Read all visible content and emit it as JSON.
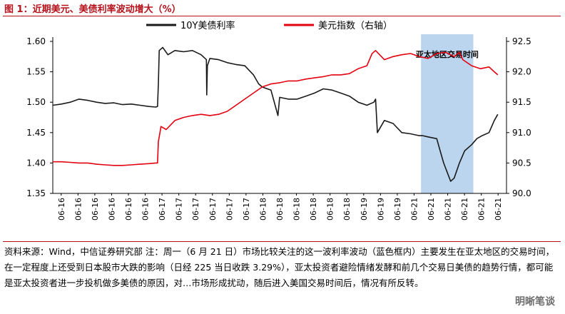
{
  "figure": {
    "title": "图 1：近期美元、美债利率波动增大（%）",
    "note": "资料来源：Wind，中信证券研究部  注：周一（6 月 21 日）市场比较关注的这一波利率波动（蓝色框内）主要发生在亚太地区的交易时间，在一定程度上还受到日本股市大跌的影响（日经 225 当日收跌 3.29%），亚太投资者避险情绪发酵和前几个交易日美债的趋势行情，都可能是亚太投资者进一步投机做多美债的原因，对…市场形成扰动，随后进入美国交易时间后，情况有所反转。",
    "watermark": "明晰笔谈"
  },
  "colors": {
    "yield": "#1a1a1a",
    "dollar": "#e3000f",
    "highlight": "#bcd5ee",
    "accent": "#b5121b"
  },
  "chart_data": {
    "type": "line",
    "title": "",
    "legend": [
      "10Y美债利率",
      "美元指数（右轴）"
    ],
    "legend_position": "top",
    "annotation": "亚太地区交易时间",
    "x_tick_labels": [
      "06-16",
      "06-16",
      "06-16",
      "06-16",
      "06-16",
      "06-16",
      "06-17",
      "06-17",
      "06-17",
      "06-17",
      "06-17",
      "06-17",
      "06-18",
      "06-18",
      "06-18",
      "06-18",
      "06-18",
      "06-18",
      "06-19",
      "06-19",
      "06-19",
      "06-21",
      "06-21",
      "06-21",
      "06-21",
      "06-21",
      "06-21"
    ],
    "x_range": [
      0,
      26
    ],
    "highlight_range": [
      21.1,
      24.1
    ],
    "y_left": {
      "lim": [
        1.35,
        1.6
      ],
      "ticks": [
        "1.35",
        "1.40",
        "1.45",
        "1.50",
        "1.55",
        "1.60"
      ]
    },
    "y_right": {
      "lim": [
        90.0,
        92.5
      ],
      "ticks": [
        "90.0",
        "90.5",
        "91.0",
        "91.5",
        "92.0",
        "92.5"
      ]
    },
    "series": [
      {
        "name": "10Y美债利率",
        "axis": "left",
        "x": [
          0,
          0.5,
          1,
          1.5,
          2,
          2.5,
          3,
          3.5,
          4,
          4.5,
          5,
          5.5,
          5.9,
          6.0,
          6.05,
          6.1,
          6.3,
          6.6,
          7,
          7.5,
          8,
          8.5,
          8.8,
          8.82,
          8.86,
          9,
          9.5,
          10,
          10.5,
          11,
          11.5,
          11.8,
          12,
          12.5,
          12.9,
          13.0,
          13.5,
          14,
          14.5,
          15,
          15.5,
          16,
          16.5,
          17,
          17.5,
          18,
          18.4,
          18.5,
          18.6,
          19,
          19.5,
          20,
          20.5,
          21,
          21.2,
          21.5,
          22,
          22.2,
          22.4,
          22.6,
          22.8,
          23,
          23.3,
          23.6,
          24,
          24.3,
          24.6,
          25,
          25.3,
          25.5
        ],
        "y": [
          1.495,
          1.497,
          1.5,
          1.505,
          1.503,
          1.5,
          1.498,
          1.499,
          1.496,
          1.497,
          1.495,
          1.493,
          1.492,
          1.493,
          1.53,
          1.585,
          1.59,
          1.578,
          1.585,
          1.583,
          1.585,
          1.578,
          1.57,
          1.512,
          1.56,
          1.572,
          1.57,
          1.565,
          1.562,
          1.56,
          1.545,
          1.53,
          1.525,
          1.52,
          1.478,
          1.508,
          1.505,
          1.505,
          1.51,
          1.515,
          1.522,
          1.52,
          1.515,
          1.51,
          1.5,
          1.495,
          1.5,
          1.505,
          1.45,
          1.47,
          1.465,
          1.45,
          1.448,
          1.445,
          1.445,
          1.443,
          1.44,
          1.42,
          1.4,
          1.385,
          1.37,
          1.375,
          1.4,
          1.42,
          1.43,
          1.44,
          1.445,
          1.45,
          1.47,
          1.48
        ]
      },
      {
        "name": "美元指数（右轴）",
        "axis": "right",
        "x": [
          0,
          0.5,
          1,
          1.5,
          2,
          2.5,
          3,
          3.5,
          4,
          4.5,
          5,
          5.5,
          5.9,
          6.0,
          6.05,
          6.2,
          6.5,
          7,
          7.5,
          8,
          8.5,
          9,
          9.5,
          10,
          10.5,
          11,
          11.5,
          12,
          12.5,
          13,
          13.5,
          14,
          14.5,
          15,
          15.5,
          16,
          16.5,
          17,
          17.5,
          18,
          18.3,
          18.5,
          19,
          19.5,
          20,
          20.5,
          21,
          21.5,
          22,
          22.5,
          23,
          23.3,
          23.5,
          24,
          24.5,
          25,
          25.3,
          25.5
        ],
        "y": [
          90.52,
          90.52,
          90.51,
          90.5,
          90.5,
          90.48,
          90.47,
          90.46,
          90.46,
          90.47,
          90.48,
          90.49,
          90.5,
          90.5,
          90.85,
          91.1,
          91.05,
          91.2,
          91.25,
          91.28,
          91.3,
          91.28,
          91.3,
          91.35,
          91.45,
          91.55,
          91.65,
          91.75,
          91.8,
          91.82,
          91.85,
          91.85,
          91.88,
          91.9,
          91.92,
          91.95,
          91.95,
          91.97,
          92.05,
          92.1,
          92.3,
          92.35,
          92.2,
          92.25,
          92.28,
          92.3,
          92.25,
          92.22,
          92.3,
          92.32,
          92.25,
          92.32,
          92.2,
          92.1,
          92.05,
          92.08,
          92.0,
          91.95
        ]
      }
    ]
  }
}
